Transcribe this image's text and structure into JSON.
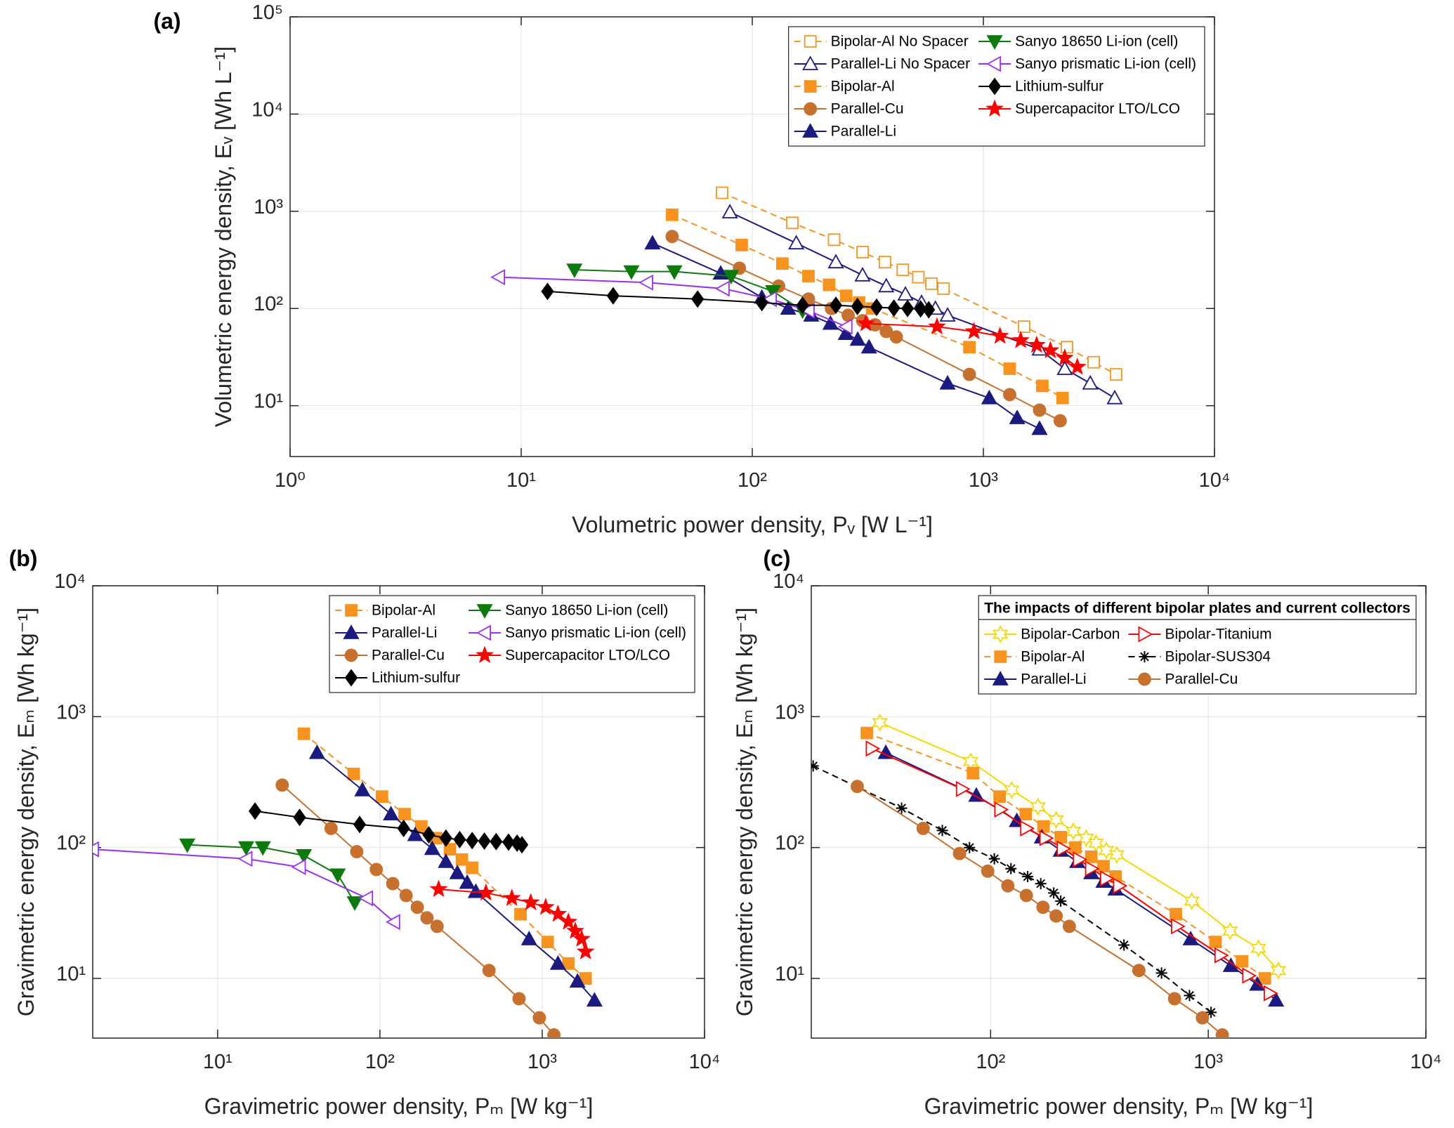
{
  "chart_data": [
    {
      "type": "line",
      "panel_label": "(a)",
      "xlabel": "Volumetric power density, Pᵥ [W L⁻¹]",
      "ylabel": "Volumetric energy density, Eᵥ [Wh L⁻¹]",
      "log_x": true,
      "log_y": true,
      "grid": true,
      "xlim": [
        1,
        10000
      ],
      "ylim": [
        3,
        100000
      ],
      "xticks": [
        {
          "value": 1,
          "label": "10⁰"
        },
        {
          "value": 10,
          "label": "10¹"
        },
        {
          "value": 100,
          "label": "10²"
        },
        {
          "value": 1000,
          "label": "10³"
        },
        {
          "value": 10000,
          "label": "10⁴"
        }
      ],
      "yticks": [
        {
          "value": 10,
          "label": "10¹"
        },
        {
          "value": 100,
          "label": "10²"
        },
        {
          "value": 1000,
          "label": "10³"
        },
        {
          "value": 10000,
          "label": "10⁴"
        },
        {
          "value": 100000,
          "label": "10⁵"
        }
      ],
      "legend_location": "northeast",
      "legend_columns": 2,
      "series": [
        {
          "name": "Bipolar-Al No Spacer",
          "color": "#F7931E",
          "marker": "square",
          "filled": false,
          "linestyle": "dashed",
          "x": [
            74,
            149,
            226,
            300,
            375,
            448,
            523,
            596,
            672,
            1500,
            2300,
            3000,
            3750
          ],
          "values": [
            1550,
            760,
            510,
            380,
            300,
            250,
            210,
            180,
            160,
            65,
            40,
            28,
            21
          ]
        },
        {
          "name": "Parallel-Li No Spacer",
          "color": "#1A1A80",
          "marker": "triangle-up",
          "filled": false,
          "linestyle": "solid",
          "x": [
            80,
            155,
            230,
            300,
            380,
            460,
            540,
            620,
            700,
            1750,
            2250,
            2900,
            3700
          ],
          "values": [
            980,
            470,
            300,
            220,
            170,
            140,
            115,
            100,
            85,
            38,
            24,
            17,
            12
          ]
        },
        {
          "name": "Bipolar-Al",
          "color": "#F7931E",
          "marker": "square",
          "filled": true,
          "linestyle": "dashed",
          "x": [
            45,
            90,
            135,
            175,
            215,
            255,
            290,
            330,
            870,
            1300,
            1800,
            2200
          ],
          "values": [
            920,
            450,
            290,
            215,
            175,
            135,
            115,
            100,
            40,
            24,
            16,
            12
          ]
        },
        {
          "name": "Parallel-Cu",
          "color": "#C8702E",
          "marker": "circle",
          "filled": true,
          "linestyle": "solid",
          "x": [
            45,
            88,
            130,
            175,
            220,
            260,
            300,
            340,
            380,
            420,
            870,
            1300,
            1750,
            2150
          ],
          "values": [
            550,
            260,
            170,
            125,
            100,
            85,
            75,
            68,
            58,
            51,
            21,
            13,
            9,
            7
          ]
        },
        {
          "name": "Parallel-Li",
          "color": "#1A1A80",
          "marker": "triangle-up",
          "filled": true,
          "linestyle": "solid",
          "x": [
            37,
            73,
            110,
            143,
            180,
            218,
            254,
            286,
            320,
            700,
            1060,
            1400,
            1750
          ],
          "values": [
            470,
            230,
            130,
            100,
            85,
            70,
            55,
            48,
            40,
            17,
            12,
            7.5,
            5.8
          ]
        },
        {
          "name": "Sanyo 18650 Li-ion (cell)",
          "color": "#0E7A0D",
          "marker": "triangle-down",
          "filled": true,
          "linestyle": "solid",
          "x": [
            17,
            30,
            46,
            81,
            123,
            165
          ],
          "values": [
            250,
            240,
            240,
            215,
            150,
            95
          ]
        },
        {
          "name": "Sanyo prismatic Li-ion (cell)",
          "color": "#9B30F0",
          "marker": "triangle-left",
          "filled": false,
          "linestyle": "solid",
          "x": [
            8,
            35,
            75,
            120,
            175,
            255
          ],
          "values": [
            210,
            185,
            160,
            125,
            95,
            65
          ]
        },
        {
          "name": "Lithium-sulfur",
          "color": "#000000",
          "marker": "diamond",
          "filled": true,
          "linestyle": "solid",
          "x": [
            13,
            25,
            58,
            110,
            165,
            230,
            285,
            345,
            410,
            470,
            535,
            580
          ],
          "values": [
            150,
            135,
            125,
            115,
            108,
            108,
            105,
            103,
            101,
            100,
            99,
            97
          ]
        },
        {
          "name": "Supercapacitor LTO/LCO",
          "color": "#FF0000",
          "marker": "star",
          "filled": true,
          "linestyle": "solid",
          "x": [
            310,
            630,
            910,
            1180,
            1450,
            1700,
            1950,
            2250,
            2550
          ],
          "values": [
            70,
            65,
            58,
            52,
            47,
            42,
            37,
            31,
            25
          ]
        }
      ]
    },
    {
      "type": "line",
      "panel_label": "(b)",
      "xlabel": "Gravimetric power density, Pₘ [W kg⁻¹]",
      "ylabel": "Gravimetric energy density, Eₘ [Wh kg⁻¹]",
      "log_x": true,
      "log_y": true,
      "grid": true,
      "xlim": [
        1.7,
        10000
      ],
      "ylim": [
        3.5,
        10000
      ],
      "xticks": [
        {
          "value": 10,
          "label": "10¹"
        },
        {
          "value": 100,
          "label": "10²"
        },
        {
          "value": 1000,
          "label": "10³"
        },
        {
          "value": 10000,
          "label": "10⁴"
        }
      ],
      "yticks": [
        {
          "value": 10,
          "label": "10¹"
        },
        {
          "value": 100,
          "label": "10²"
        },
        {
          "value": 1000,
          "label": "10³"
        },
        {
          "value": 10000,
          "label": "10⁴"
        }
      ],
      "legend_location": "northeast",
      "legend_columns": 2,
      "series": [
        {
          "name": "Bipolar-Al",
          "color": "#F7931E",
          "marker": "square",
          "filled": true,
          "linestyle": "dashed",
          "x": [
            34,
            69,
            103,
            142,
            180,
            222,
            270,
            320,
            370,
            735,
            1080,
            1450,
            1850
          ],
          "values": [
            740,
            365,
            245,
            180,
            145,
            118,
            97,
            81,
            70,
            31,
            19,
            13,
            10
          ]
        },
        {
          "name": "Parallel-Li",
          "color": "#1A1A80",
          "marker": "triangle-up",
          "filled": true,
          "linestyle": "solid",
          "x": [
            41,
            78,
            117,
            165,
            210,
            255,
            300,
            345,
            390,
            830,
            1250,
            1650,
            2100
          ],
          "values": [
            530,
            275,
            180,
            125,
            98,
            78,
            64,
            54,
            46,
            20,
            13,
            9.5,
            6.8
          ]
        },
        {
          "name": "Parallel-Cu",
          "color": "#C8702E",
          "marker": "circle",
          "filled": true,
          "linestyle": "solid",
          "x": [
            25,
            50,
            72,
            95,
            120,
            145,
            170,
            195,
            225,
            470,
            720,
            960,
            1180
          ],
          "values": [
            300,
            140,
            93,
            68,
            53,
            43,
            35,
            29,
            25,
            11.5,
            7,
            5,
            3.7
          ]
        },
        {
          "name": "Lithium-sulfur",
          "color": "#000000",
          "marker": "diamond",
          "filled": true,
          "linestyle": "solid",
          "x": [
            17,
            32,
            75,
            140,
            200,
            255,
            310,
            370,
            440,
            520,
            620,
            700,
            750
          ],
          "values": [
            190,
            170,
            150,
            140,
            125,
            118,
            115,
            113,
            112,
            111,
            110,
            108,
            105
          ]
        },
        {
          "name": "Sanyo 18650 Li-ion (cell)",
          "color": "#0E7A0D",
          "marker": "triangle-down",
          "filled": true,
          "linestyle": "solid",
          "x": [
            6.5,
            15,
            19,
            34,
            55,
            70
          ],
          "values": [
            105,
            100,
            100,
            87,
            62,
            38
          ]
        },
        {
          "name": "Sanyo prismatic Li-ion (cell)",
          "color": "#9B30F0",
          "marker": "triangle-left",
          "filled": false,
          "linestyle": "solid",
          "x": [
            1.7,
            15,
            32,
            83,
            122
          ],
          "values": [
            97,
            82,
            71,
            41,
            27
          ]
        },
        {
          "name": "Supercapacitor LTO/LCO",
          "color": "#FF0000",
          "marker": "star",
          "filled": true,
          "linestyle": "solid",
          "x": [
            230,
            450,
            650,
            850,
            1050,
            1250,
            1450,
            1600,
            1750,
            1850
          ],
          "values": [
            48,
            45,
            41,
            38,
            35,
            31,
            27,
            23,
            20,
            16
          ]
        }
      ]
    },
    {
      "type": "line",
      "panel_label": "(c)",
      "xlabel": "Gravimetric power density, Pₘ [W kg⁻¹]",
      "ylabel": "Gravimetric energy density, Eₘ [Wh kg⁻¹]",
      "log_x": true,
      "log_y": true,
      "grid": true,
      "xlim": [
        15,
        10000
      ],
      "ylim": [
        3.5,
        10000
      ],
      "xticks": [
        {
          "value": 100,
          "label": "10²"
        },
        {
          "value": 1000,
          "label": "10³"
        },
        {
          "value": 10000,
          "label": "10⁴"
        }
      ],
      "yticks": [
        {
          "value": 10,
          "label": "10¹"
        },
        {
          "value": 100,
          "label": "10²"
        },
        {
          "value": 1000,
          "label": "10³"
        },
        {
          "value": 10000,
          "label": "10⁴"
        }
      ],
      "legend_location": "northeast",
      "legend_columns": 2,
      "legend_title": "The impacts of different bipolar plates and current collectors",
      "series": [
        {
          "name": "Bipolar-Carbon",
          "color": "#F5D800",
          "marker": "hexagram",
          "filled": false,
          "linestyle": "solid",
          "x": [
            31,
            81,
            125,
            165,
            200,
            240,
            275,
            305,
            340,
            380,
            840,
            1260,
            1700,
            2100
          ],
          "values": [
            900,
            455,
            275,
            205,
            163,
            133,
            118,
            108,
            95,
            88,
            39,
            23,
            17,
            11.5
          ]
        },
        {
          "name": "Bipolar-Al",
          "color": "#F7931E",
          "marker": "square",
          "filled": true,
          "linestyle": "dashed",
          "x": [
            27,
            83,
            110,
            145,
            175,
            210,
            245,
            290,
            330,
            375,
            710,
            1080,
            1430,
            1820
          ],
          "values": [
            750,
            370,
            245,
            180,
            145,
            120,
            100,
            85,
            72,
            60,
            31,
            19,
            13.5,
            10
          ]
        },
        {
          "name": "Parallel-Li",
          "color": "#1A1A80",
          "marker": "triangle-up",
          "filled": true,
          "linestyle": "solid",
          "x": [
            33,
            86,
            132,
            172,
            210,
            250,
            290,
            330,
            375,
            830,
            1270,
            1680,
            2050
          ],
          "values": [
            530,
            250,
            160,
            120,
            95,
            78,
            64,
            55,
            48,
            20,
            12.5,
            9,
            6.8
          ]
        },
        {
          "name": "Bipolar-Titanium",
          "color": "#FF0000",
          "marker": "triangle-right",
          "filled": false,
          "linestyle": "solid",
          "x": [
            28.5,
            74,
            111,
            146,
            179,
            215,
            255,
            290,
            340,
            390,
            720,
            1140,
            1530,
            1920
          ],
          "values": [
            570,
            280,
            195,
            140,
            118,
            98,
            81,
            69,
            58,
            51,
            25,
            15,
            10.5,
            7.7
          ]
        },
        {
          "name": "Bipolar-SUS304",
          "color": "#000000",
          "marker": "asterisk",
          "filled": false,
          "linestyle": "dashed",
          "x": [
            15.3,
            39,
            60,
            80,
            104,
            124,
            148,
            170,
            195,
            210,
            410,
            610,
            820,
            1030
          ],
          "values": [
            420,
            200,
            135,
            100,
            82,
            69,
            60,
            53,
            45,
            39,
            18,
            11,
            7.4,
            5.5
          ]
        },
        {
          "name": "Parallel-Cu",
          "color": "#C8702E",
          "marker": "circle",
          "filled": true,
          "linestyle": "solid",
          "x": [
            24.4,
            49,
            72,
            97,
            120,
            146,
            174,
            200,
            230,
            480,
            700,
            940,
            1160
          ],
          "values": [
            293,
            140,
            90,
            66,
            51,
            43,
            35,
            30,
            25,
            11.5,
            7,
            5,
            3.7
          ]
        }
      ]
    }
  ]
}
